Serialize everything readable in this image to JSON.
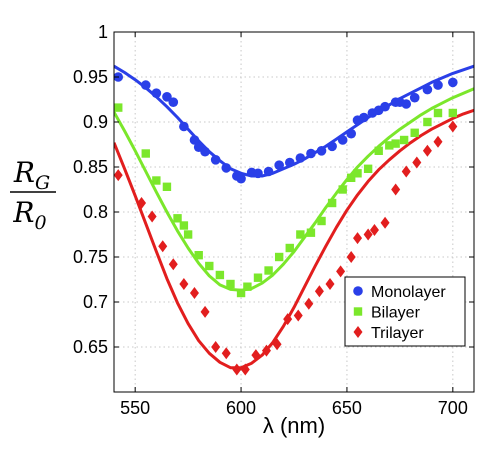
{
  "chart_data": {
    "type": "scatter",
    "xlabel": "λ (nm)",
    "ylabel": {
      "numerator": "R",
      "numerator_sub": "G",
      "denominator": "R",
      "denominator_sub": "0"
    },
    "xlim": [
      540,
      710
    ],
    "ylim": [
      0.6,
      1.0
    ],
    "xticks": [
      550,
      600,
      650,
      700
    ],
    "yticks": [
      0.65,
      0.7,
      0.75,
      0.8,
      0.85,
      0.9,
      0.95,
      1.0
    ],
    "xtick_labels": [
      "550",
      "600",
      "650",
      "700"
    ],
    "ytick_labels": [
      "0.65",
      "0.7",
      "0.75",
      "0.8",
      "0.85",
      "0.9",
      "0.95",
      "1"
    ],
    "grid": true,
    "legend_position": "bottom-right",
    "series": [
      {
        "name": "Monolayer",
        "marker": "circle",
        "color": "#2a3fe8",
        "points": [
          [
            542,
            0.95
          ],
          [
            555,
            0.941
          ],
          [
            560,
            0.932
          ],
          [
            565,
            0.928
          ],
          [
            568,
            0.922
          ],
          [
            573,
            0.895
          ],
          [
            578,
            0.88
          ],
          [
            580,
            0.872
          ],
          [
            583,
            0.867
          ],
          [
            588,
            0.858
          ],
          [
            593,
            0.849
          ],
          [
            598,
            0.84
          ],
          [
            600,
            0.837
          ],
          [
            605,
            0.844
          ],
          [
            608,
            0.843
          ],
          [
            613,
            0.845
          ],
          [
            618,
            0.852
          ],
          [
            623,
            0.855
          ],
          [
            628,
            0.86
          ],
          [
            633,
            0.865
          ],
          [
            638,
            0.868
          ],
          [
            643,
            0.873
          ],
          [
            648,
            0.88
          ],
          [
            652,
            0.887
          ],
          [
            655,
            0.902
          ],
          [
            658,
            0.905
          ],
          [
            662,
            0.91
          ],
          [
            665,
            0.913
          ],
          [
            668,
            0.917
          ],
          [
            673,
            0.922
          ],
          [
            675,
            0.922
          ],
          [
            678,
            0.92
          ],
          [
            682,
            0.927
          ],
          [
            688,
            0.936
          ],
          [
            693,
            0.941
          ],
          [
            700,
            0.944
          ]
        ],
        "fit": [
          [
            540,
            0.962
          ],
          [
            545,
            0.955
          ],
          [
            550,
            0.947
          ],
          [
            555,
            0.938
          ],
          [
            560,
            0.928
          ],
          [
            565,
            0.917
          ],
          [
            570,
            0.905
          ],
          [
            575,
            0.892
          ],
          [
            580,
            0.879
          ],
          [
            585,
            0.867
          ],
          [
            590,
            0.857
          ],
          [
            595,
            0.848
          ],
          [
            600,
            0.843
          ],
          [
            605,
            0.84
          ],
          [
            610,
            0.84
          ],
          [
            615,
            0.843
          ],
          [
            620,
            0.848
          ],
          [
            625,
            0.853
          ],
          [
            630,
            0.859
          ],
          [
            635,
            0.866
          ],
          [
            640,
            0.873
          ],
          [
            645,
            0.881
          ],
          [
            650,
            0.889
          ],
          [
            655,
            0.897
          ],
          [
            660,
            0.905
          ],
          [
            665,
            0.912
          ],
          [
            670,
            0.919
          ],
          [
            675,
            0.926
          ],
          [
            680,
            0.932
          ],
          [
            685,
            0.938
          ],
          [
            690,
            0.944
          ],
          [
            695,
            0.949
          ],
          [
            700,
            0.954
          ],
          [
            705,
            0.958
          ],
          [
            710,
            0.962
          ]
        ]
      },
      {
        "name": "Bilayer",
        "marker": "square",
        "color": "#7be72b",
        "points": [
          [
            542,
            0.916
          ],
          [
            555,
            0.865
          ],
          [
            560,
            0.835
          ],
          [
            565,
            0.828
          ],
          [
            570,
            0.793
          ],
          [
            573,
            0.785
          ],
          [
            575,
            0.775
          ],
          [
            580,
            0.752
          ],
          [
            585,
            0.74
          ],
          [
            590,
            0.73
          ],
          [
            595,
            0.72
          ],
          [
            600,
            0.71
          ],
          [
            603,
            0.717
          ],
          [
            608,
            0.727
          ],
          [
            613,
            0.735
          ],
          [
            618,
            0.75
          ],
          [
            623,
            0.76
          ],
          [
            628,
            0.775
          ],
          [
            633,
            0.777
          ],
          [
            638,
            0.79
          ],
          [
            643,
            0.81
          ],
          [
            648,
            0.825
          ],
          [
            652,
            0.838
          ],
          [
            655,
            0.843
          ],
          [
            660,
            0.848
          ],
          [
            665,
            0.868
          ],
          [
            670,
            0.874
          ],
          [
            673,
            0.876
          ],
          [
            677,
            0.88
          ],
          [
            682,
            0.888
          ],
          [
            688,
            0.9
          ],
          [
            693,
            0.91
          ],
          [
            700,
            0.91
          ]
        ],
        "fit": [
          [
            540,
            0.911
          ],
          [
            545,
            0.89
          ],
          [
            550,
            0.868
          ],
          [
            555,
            0.845
          ],
          [
            560,
            0.822
          ],
          [
            565,
            0.8
          ],
          [
            570,
            0.779
          ],
          [
            575,
            0.76
          ],
          [
            580,
            0.743
          ],
          [
            585,
            0.729
          ],
          [
            590,
            0.719
          ],
          [
            595,
            0.714
          ],
          [
            600,
            0.713
          ],
          [
            605,
            0.715
          ],
          [
            610,
            0.721
          ],
          [
            615,
            0.73
          ],
          [
            620,
            0.742
          ],
          [
            625,
            0.756
          ],
          [
            630,
            0.772
          ],
          [
            635,
            0.788
          ],
          [
            640,
            0.805
          ],
          [
            645,
            0.821
          ],
          [
            650,
            0.836
          ],
          [
            655,
            0.85
          ],
          [
            660,
            0.862
          ],
          [
            665,
            0.873
          ],
          [
            670,
            0.883
          ],
          [
            675,
            0.892
          ],
          [
            680,
            0.9
          ],
          [
            685,
            0.908
          ],
          [
            690,
            0.915
          ],
          [
            695,
            0.921
          ],
          [
            700,
            0.927
          ],
          [
            705,
            0.932
          ],
          [
            710,
            0.937
          ]
        ]
      },
      {
        "name": "Trilayer",
        "marker": "diamond",
        "color": "#e21e1e",
        "points": [
          [
            542,
            0.841
          ],
          [
            553,
            0.81
          ],
          [
            558,
            0.795
          ],
          [
            563,
            0.762
          ],
          [
            568,
            0.742
          ],
          [
            573,
            0.72
          ],
          [
            578,
            0.71
          ],
          [
            583,
            0.689
          ],
          [
            588,
            0.65
          ],
          [
            593,
            0.643
          ],
          [
            598,
            0.625
          ],
          [
            602,
            0.625
          ],
          [
            607,
            0.641
          ],
          [
            612,
            0.646
          ],
          [
            617,
            0.653
          ],
          [
            622,
            0.681
          ],
          [
            627,
            0.685
          ],
          [
            632,
            0.698
          ],
          [
            637,
            0.712
          ],
          [
            642,
            0.72
          ],
          [
            647,
            0.734
          ],
          [
            652,
            0.75
          ],
          [
            655,
            0.771
          ],
          [
            660,
            0.775
          ],
          [
            663,
            0.78
          ],
          [
            668,
            0.788
          ],
          [
            673,
            0.825
          ],
          [
            678,
            0.845
          ],
          [
            683,
            0.855
          ],
          [
            688,
            0.868
          ],
          [
            693,
            0.878
          ],
          [
            700,
            0.895
          ]
        ],
        "fit": [
          [
            540,
            0.877
          ],
          [
            545,
            0.848
          ],
          [
            550,
            0.818
          ],
          [
            555,
            0.787
          ],
          [
            560,
            0.756
          ],
          [
            565,
            0.726
          ],
          [
            570,
            0.699
          ],
          [
            575,
            0.676
          ],
          [
            580,
            0.657
          ],
          [
            585,
            0.643
          ],
          [
            590,
            0.633
          ],
          [
            595,
            0.627
          ],
          [
            600,
            0.627
          ],
          [
            605,
            0.632
          ],
          [
            610,
            0.641
          ],
          [
            615,
            0.655
          ],
          [
            620,
            0.673
          ],
          [
            625,
            0.694
          ],
          [
            630,
            0.717
          ],
          [
            635,
            0.74
          ],
          [
            640,
            0.762
          ],
          [
            645,
            0.783
          ],
          [
            650,
            0.802
          ],
          [
            655,
            0.819
          ],
          [
            660,
            0.834
          ],
          [
            665,
            0.847
          ],
          [
            670,
            0.858
          ],
          [
            675,
            0.868
          ],
          [
            680,
            0.877
          ],
          [
            685,
            0.885
          ],
          [
            690,
            0.892
          ],
          [
            695,
            0.898
          ],
          [
            700,
            0.904
          ],
          [
            705,
            0.909
          ],
          [
            710,
            0.913
          ]
        ]
      }
    ]
  }
}
